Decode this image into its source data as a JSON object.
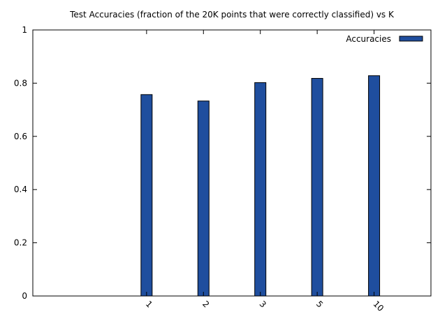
{
  "chart_data": {
    "type": "bar",
    "title": "Test Accuracies (fraction of the 20K points that were correctly classified) vs K",
    "xlabel": "",
    "ylabel": "",
    "categories": [
      "1",
      "2",
      "3",
      "5",
      "10"
    ],
    "series": [
      {
        "name": "Accuracies",
        "values": [
          0.757,
          0.733,
          0.802,
          0.818,
          0.828
        ]
      }
    ],
    "ylim": [
      0,
      1
    ],
    "yticks": [
      "0",
      "0.2",
      "0.4",
      "0.6",
      "0.8",
      "1"
    ],
    "grid": false,
    "legend_position": "top-right",
    "bar_color": "#1f4e9e",
    "bar_edge_color": "#000000"
  }
}
